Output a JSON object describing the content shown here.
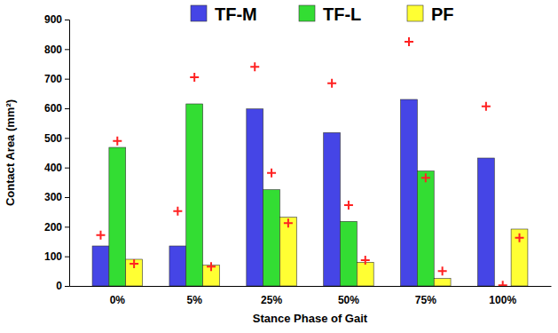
{
  "chart_data": {
    "type": "bar",
    "x_label": "Stance Phase of Gait",
    "y_label": "Contact Area (mm²)",
    "categories": [
      "0%",
      "5%",
      "25%",
      "50%",
      "75%",
      "100%"
    ],
    "series": [
      {
        "name": "TF-M",
        "color": "#4545e6",
        "values": [
          135,
          135,
          598,
          518,
          630,
          432
        ]
      },
      {
        "name": "TF-L",
        "color": "#33dd33",
        "values": [
          468,
          615,
          325,
          218,
          388,
          0
        ]
      },
      {
        "name": "PF",
        "color": "#ffff33",
        "values": [
          90,
          70,
          232,
          80,
          25,
          192
        ]
      },
      {
        "type": "scatter",
        "marker": "plus",
        "color": "#ff2222",
        "values": [
          172,
          253,
          740,
          685,
          825,
          607
        ]
      },
      {
        "type": "scatter",
        "marker": "plus",
        "color": "#ff2222",
        "values": [
          490,
          705,
          382,
          273,
          365,
          2
        ]
      },
      {
        "type": "scatter",
        "marker": "plus",
        "color": "#ff2222",
        "values": [
          75,
          65,
          212,
          87,
          50,
          163
        ]
      }
    ],
    "ylim": [
      0,
      900
    ],
    "yticks": [
      0,
      100,
      200,
      300,
      400,
      500,
      600,
      700,
      800,
      900
    ],
    "legend": "top",
    "grid": false
  }
}
